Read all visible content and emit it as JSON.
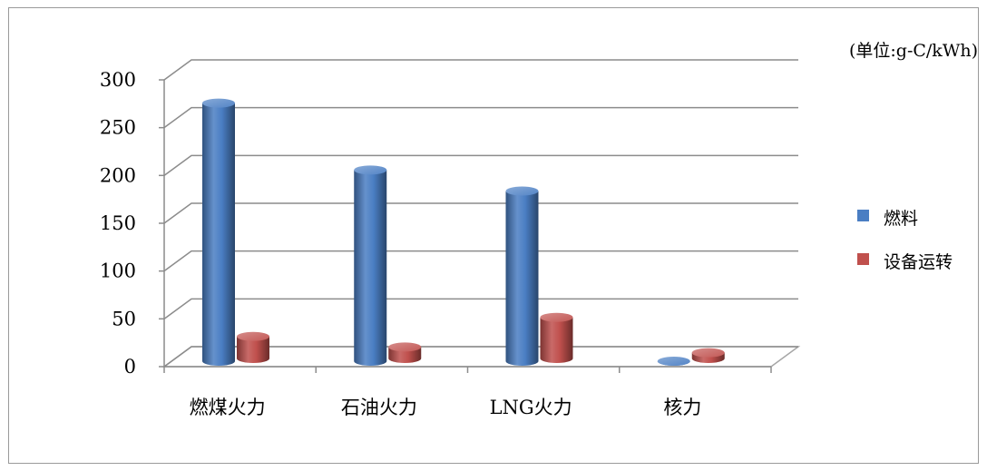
{
  "chart_data": {
    "type": "bar",
    "title": "",
    "unit_label": "(单位:g-C/kWh)",
    "categories": [
      "燃煤火力",
      "石油火力",
      "LNG火力",
      "核力"
    ],
    "series": [
      {
        "name": "燃料",
        "values": [
          270,
          200,
          178,
          0
        ],
        "color": "#4a7ec3"
      },
      {
        "name": "设备运转",
        "values": [
          23,
          12,
          43,
          6
        ],
        "color": "#c0504d"
      }
    ],
    "yticks": [
      0,
      50,
      100,
      150,
      200,
      250,
      300
    ],
    "ylim": [
      0,
      300
    ],
    "grid": true,
    "legend_position": "right",
    "style": "3d-cylinder"
  }
}
